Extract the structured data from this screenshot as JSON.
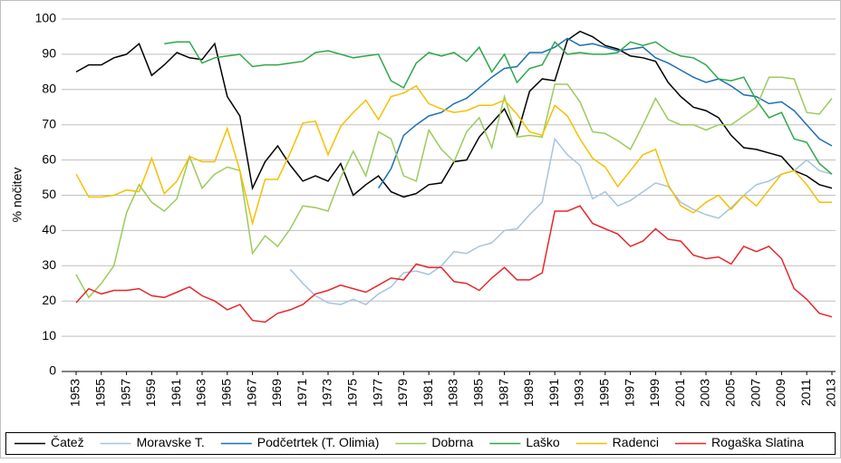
{
  "chart_data": {
    "type": "line",
    "y_label": "% nočitev",
    "x": [
      1953,
      1954,
      1955,
      1956,
      1957,
      1958,
      1959,
      1960,
      1961,
      1962,
      1963,
      1964,
      1965,
      1966,
      1967,
      1968,
      1969,
      1970,
      1971,
      1972,
      1973,
      1974,
      1975,
      1976,
      1977,
      1978,
      1979,
      1980,
      1981,
      1982,
      1983,
      1984,
      1985,
      1986,
      1987,
      1988,
      1989,
      1990,
      1991,
      1992,
      1993,
      1994,
      1995,
      1996,
      1997,
      1998,
      1999,
      2000,
      2001,
      2002,
      2003,
      2004,
      2005,
      2006,
      2007,
      2008,
      2009,
      2010,
      2011,
      2012,
      2013
    ],
    "xlim": [
      1953,
      2013
    ],
    "xticks": [
      1953,
      1955,
      1957,
      1959,
      1961,
      1963,
      1965,
      1967,
      1969,
      1971,
      1973,
      1975,
      1977,
      1979,
      1981,
      1983,
      1985,
      1987,
      1989,
      1991,
      1993,
      1995,
      1997,
      1999,
      2001,
      2003,
      2005,
      2007,
      2009,
      2011,
      2013
    ],
    "ylim": [
      0,
      100
    ],
    "yticks": [
      0,
      10,
      20,
      30,
      40,
      50,
      60,
      70,
      80,
      90,
      100
    ],
    "grid": true,
    "legend": "bottom",
    "series": [
      {
        "name": "Čatež",
        "color": "#000000",
        "values": [
          85,
          87,
          87,
          89,
          90,
          93,
          84,
          87,
          90.5,
          89,
          88.5,
          93,
          78,
          72.5,
          52,
          59.5,
          64,
          58.5,
          54,
          55.5,
          54,
          59,
          50,
          53,
          55.5,
          51,
          49.5,
          50.5,
          53,
          53.5,
          59.5,
          60,
          66.5,
          70.5,
          74.5,
          67,
          79.5,
          83,
          82.5,
          94,
          96.5,
          95,
          92.5,
          91.5,
          89.5,
          89,
          88,
          82,
          78,
          75,
          74,
          72,
          67,
          63.5,
          63,
          62,
          61,
          57,
          55.5,
          53,
          52
        ]
      },
      {
        "name": "Moravske T.",
        "color": "#a6c4e0",
        "values": [
          null,
          null,
          null,
          null,
          null,
          null,
          null,
          null,
          null,
          null,
          null,
          null,
          null,
          null,
          null,
          null,
          null,
          29,
          25,
          21.5,
          19.5,
          19,
          20.5,
          19,
          22,
          24,
          28,
          28.5,
          27.5,
          30,
          34,
          33.5,
          35.5,
          36.5,
          40,
          40.5,
          44.5,
          48,
          66,
          61.5,
          58.5,
          49,
          51,
          47,
          48.5,
          51,
          53.5,
          52.5,
          48,
          46,
          44.5,
          43.5,
          46.5,
          50,
          53,
          54,
          56,
          57,
          60,
          57,
          56
        ]
      },
      {
        "name": "Podčetrtek (T. Olimia)",
        "color": "#1f6fb5",
        "values": [
          null,
          null,
          null,
          null,
          null,
          null,
          null,
          null,
          null,
          null,
          null,
          null,
          null,
          null,
          null,
          null,
          null,
          null,
          null,
          null,
          null,
          null,
          null,
          null,
          52,
          57.5,
          67,
          70,
          72.5,
          73.5,
          76,
          77.5,
          80.5,
          83.5,
          86,
          86.5,
          90.5,
          90.5,
          92,
          94.5,
          92.5,
          93,
          92,
          91,
          91.5,
          92,
          89,
          87.5,
          85.5,
          83.5,
          82,
          83,
          81,
          78.5,
          78,
          76,
          76.5,
          74,
          70,
          66,
          64
        ]
      },
      {
        "name": "Dobrna",
        "color": "#9bcb5c",
        "values": [
          27.5,
          21,
          25,
          30,
          45,
          53,
          48,
          45.5,
          49,
          61,
          52,
          56,
          58,
          57,
          33.5,
          38.5,
          35.5,
          40.5,
          47,
          46.5,
          45.5,
          55,
          62.5,
          55.5,
          68,
          66,
          55.5,
          54,
          68.5,
          63,
          59.5,
          68,
          72,
          63.5,
          78,
          66.5,
          67,
          66.5,
          81.5,
          81.5,
          76.5,
          68,
          67.5,
          65.5,
          63,
          70,
          77.5,
          71.5,
          70,
          70,
          68.5,
          70,
          70,
          72.5,
          75,
          83.5,
          83.5,
          83,
          73.5,
          73,
          77.5
        ]
      },
      {
        "name": "Laško",
        "color": "#2ea84a",
        "values": [
          null,
          null,
          null,
          null,
          null,
          null,
          null,
          93,
          93.5,
          93.5,
          87.5,
          89,
          89.5,
          90,
          86.5,
          87,
          87,
          87.5,
          88,
          90.5,
          91,
          90,
          89,
          89.5,
          90,
          82.5,
          80.5,
          87.5,
          90.5,
          89.5,
          90.5,
          88,
          92,
          85,
          90,
          82,
          86,
          87,
          93.5,
          90,
          90.5,
          90,
          90,
          90.5,
          93.5,
          92.5,
          93.5,
          91,
          89.5,
          89,
          87,
          83,
          82.5,
          83.5,
          77,
          72,
          73.5,
          66,
          65,
          59,
          56
        ]
      },
      {
        "name": "Radenci",
        "color": "#f5c000",
        "values": [
          56,
          49.5,
          49.5,
          50,
          51.5,
          51,
          60.5,
          50.5,
          54,
          61,
          59.5,
          59.5,
          69,
          57,
          42,
          54.5,
          54.5,
          62,
          70.5,
          71,
          61.5,
          69.5,
          73.5,
          77,
          71.5,
          78,
          79,
          81,
          76,
          74.5,
          73.5,
          74,
          75.5,
          75.5,
          77,
          73,
          68,
          67,
          75.5,
          72.5,
          66,
          60.5,
          58,
          52.5,
          57,
          61.5,
          63,
          53,
          47,
          45,
          48,
          50,
          46,
          50,
          47,
          51.5,
          56,
          57,
          53,
          48,
          48
        ]
      },
      {
        "name": "Rogaška Slatina",
        "color": "#e8262a",
        "values": [
          19.5,
          23.5,
          22,
          23,
          23,
          23.5,
          21.5,
          21,
          22.5,
          24,
          21.5,
          20,
          17.5,
          19,
          14.5,
          14,
          16.5,
          17.5,
          19,
          22,
          23,
          24.5,
          23.5,
          22.5,
          24.5,
          26.5,
          26,
          30.5,
          29.5,
          29.5,
          25.5,
          25,
          23,
          26.5,
          29.5,
          26,
          26,
          28,
          45.5,
          45.5,
          47,
          42,
          40.5,
          39,
          35.5,
          37,
          40.5,
          37.5,
          37,
          33,
          32,
          32.5,
          30.5,
          35.5,
          34,
          35.5,
          32,
          23.5,
          20.5,
          16.5,
          15.5
        ]
      }
    ]
  }
}
